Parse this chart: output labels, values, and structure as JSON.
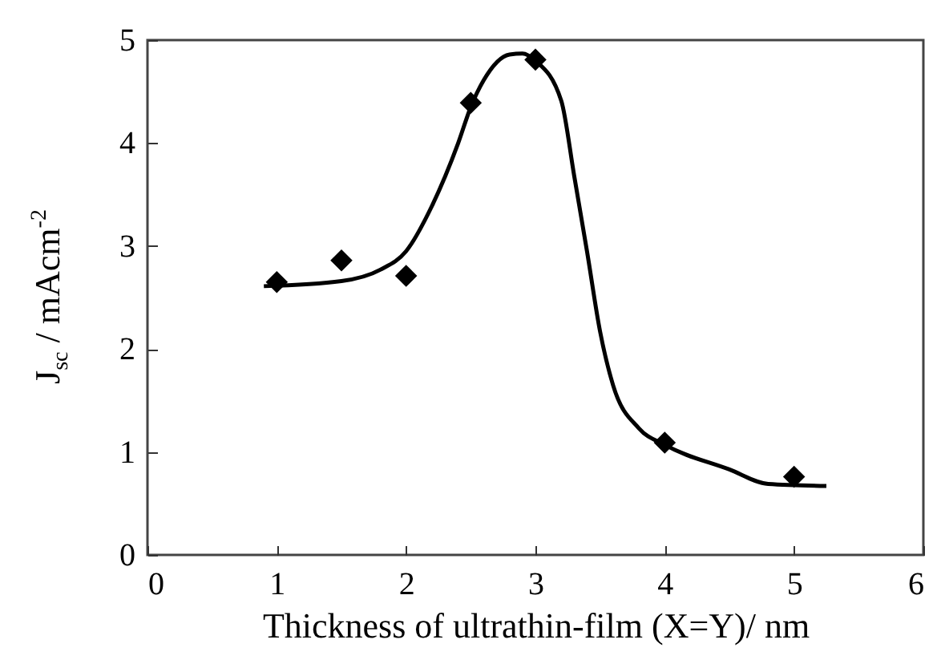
{
  "chart_data": {
    "type": "scatter",
    "xlabel": "Thickness of ultrathin-film (X=Y)/ nm",
    "ylabel": "J$_{sc}$ / mAcm$^{-2}$",
    "xlim": [
      0,
      6
    ],
    "ylim": [
      0,
      5
    ],
    "xticks": [
      0,
      1,
      2,
      3,
      4,
      5,
      6
    ],
    "yticks": [
      0,
      1,
      2,
      3,
      4,
      5
    ],
    "grid": false,
    "series": [
      {
        "type": "line",
        "color": "#000000",
        "marker": "none",
        "x": [
          0.9,
          1.5,
          1.8,
          2,
          2.2,
          2.4,
          2.5,
          2.6,
          2.8,
          2.9,
          3,
          3.2,
          3.3,
          3.4,
          3.5,
          3.6,
          3.8,
          4,
          4.5,
          4.8,
          5.25
        ],
        "values": [
          2.61,
          2.66,
          2.77,
          2.95,
          3.39,
          3.99,
          4.35,
          4.61,
          4.86,
          4.87,
          4.8,
          4.41,
          3.68,
          2.94,
          2.17,
          1.65,
          1.23,
          1.07,
          0.83,
          0.69,
          0.67
        ]
      },
      {
        "type": "scatter",
        "color": "#000000",
        "marker": "diamond",
        "x": [
          1,
          1.5,
          2,
          2.5,
          3,
          4,
          5
        ],
        "values": [
          2.65,
          2.86,
          2.71,
          4.39,
          4.81,
          1.09,
          0.76
        ]
      }
    ]
  }
}
